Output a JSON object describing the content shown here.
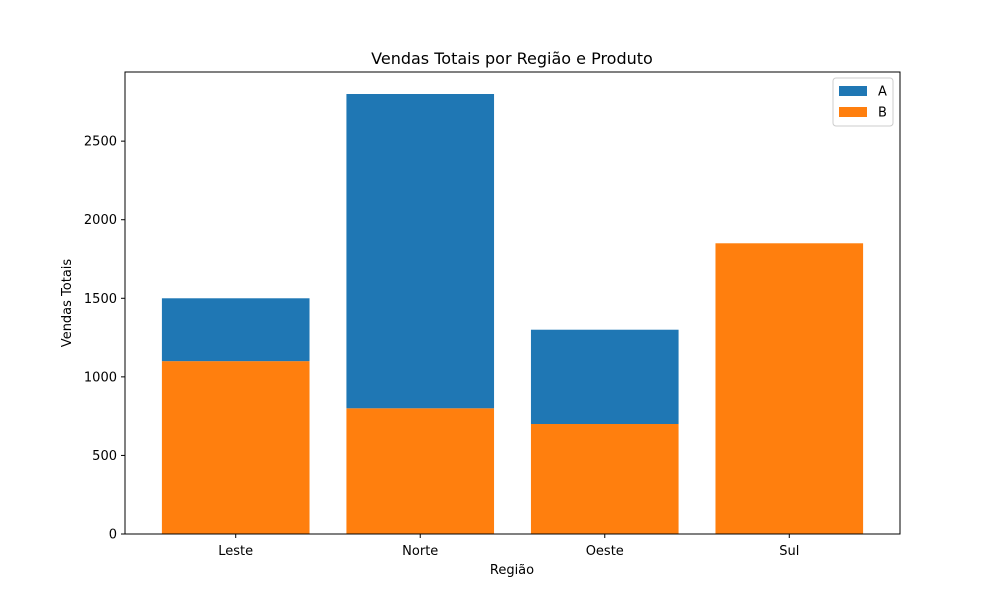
{
  "chart_data": {
    "type": "bar",
    "stacked": true,
    "title": "Vendas Totais por Região e Produto",
    "xlabel": "Região",
    "ylabel": "Vendas Totais",
    "categories": [
      "Leste",
      "Norte",
      "Oeste",
      "Sul"
    ],
    "series": [
      {
        "name": "A",
        "values": [
          400,
          2000,
          600,
          0
        ],
        "color": "#1f77b4"
      },
      {
        "name": "B",
        "values": [
          1100,
          800,
          700,
          1850
        ],
        "color": "#ff7f0e"
      }
    ],
    "ylim": [
      0,
      2940
    ],
    "yticks": [
      0,
      500,
      1000,
      1500,
      2000,
      2500
    ],
    "grid": false,
    "legend": {
      "placement": "top-right",
      "order": [
        "A",
        "B"
      ]
    }
  }
}
